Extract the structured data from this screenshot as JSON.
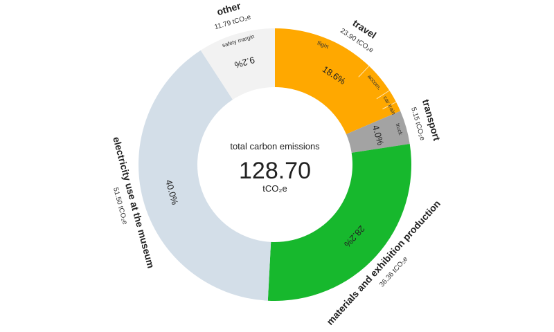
{
  "chart_data": {
    "type": "pie",
    "center": {
      "title": "total carbon emissions",
      "total": "128.70",
      "unit": "tCO₂e"
    },
    "slices": [
      {
        "name": "travel",
        "amount": "23.90 tCO₂e",
        "value": 23.9,
        "percent_label": "18.6%",
        "color": "#ffa800",
        "subcategories": [
          {
            "label": "flight",
            "value": 15.6
          },
          {
            "label": "accom.",
            "value": 4.8
          },
          {
            "label": "car",
            "value": 2.0
          },
          {
            "label": "train",
            "value": 1.5
          }
        ]
      },
      {
        "name": "transport",
        "amount": "5.15 tCO₂e",
        "value": 5.15,
        "percent_label": "4.0%",
        "color": "#a3a3a3",
        "subcategories": [
          {
            "label": "truck",
            "value": 5.15
          }
        ]
      },
      {
        "name": "materials and exhibition production",
        "amount": "36.36 tCO₂e",
        "value": 36.36,
        "percent_label": "28.2%",
        "color": "#17b82d",
        "subcategories": []
      },
      {
        "name": "electricity use at the museum",
        "amount": "51.50 tCO₂e",
        "value": 51.5,
        "percent_label": "40.0%",
        "color": "#d3dee8",
        "subcategories": []
      },
      {
        "name": "other",
        "amount": "11.79 tCO₂e",
        "value": 11.79,
        "percent_label": "9.2%",
        "color": "#f2f2f2",
        "subcategories": [
          {
            "label": "safety margin",
            "value": 11.79
          }
        ]
      }
    ]
  }
}
